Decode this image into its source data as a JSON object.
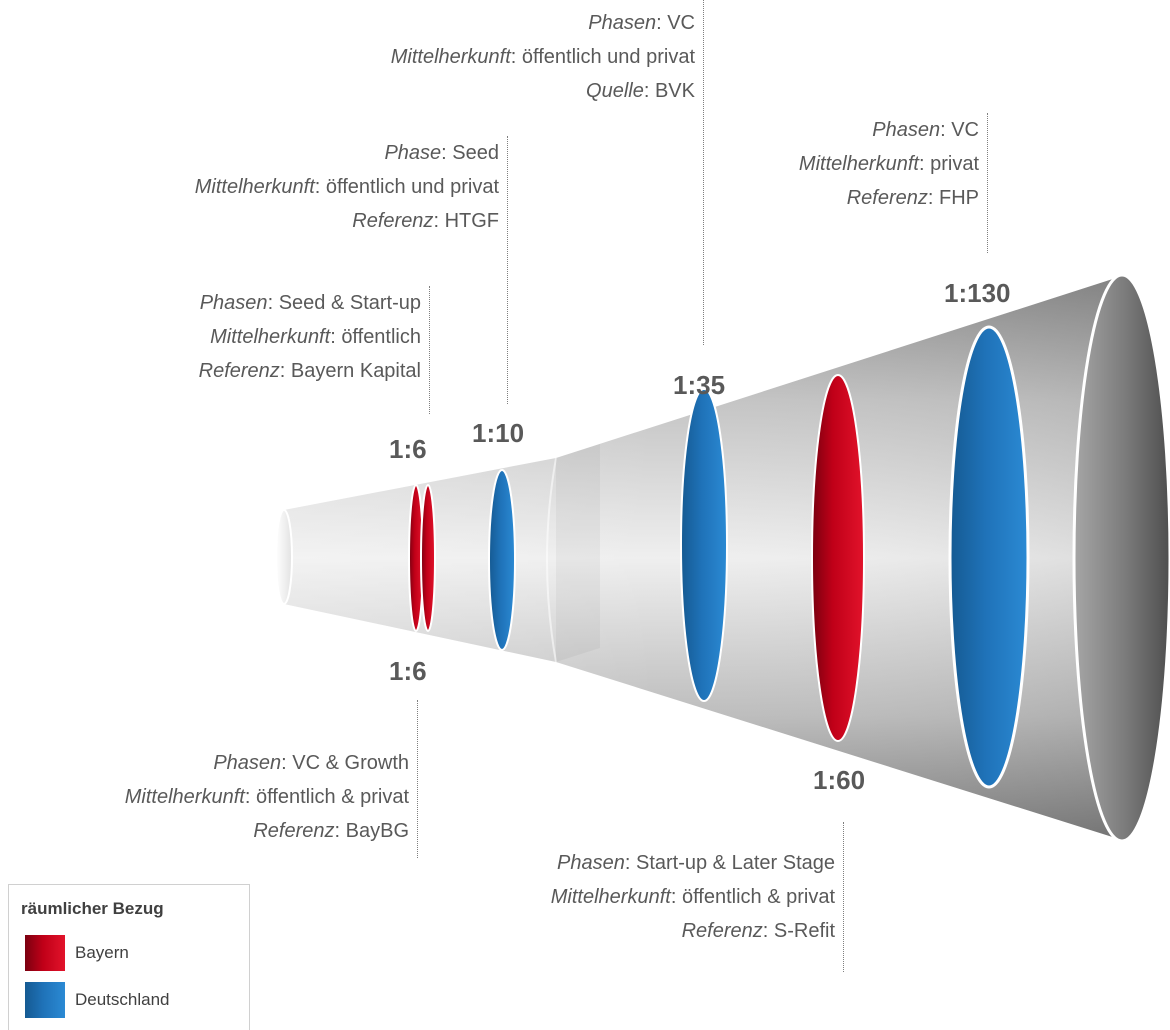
{
  "annotations": [
    {
      "id": "bayern-kapital",
      "lines": [
        {
          "key": "Phasen",
          "value": "Seed & Start-up"
        },
        {
          "key": "Mittelherkunft",
          "value": "öffentlich"
        },
        {
          "key": "Referenz",
          "value": "Bayern Kapital"
        }
      ]
    },
    {
      "id": "htgf",
      "lines": [
        {
          "key": "Phase",
          "value": "Seed"
        },
        {
          "key": "Mittelherkunft",
          "value": "öffentlich und privat"
        },
        {
          "key": "Referenz",
          "value": "HTGF"
        }
      ]
    },
    {
      "id": "bvk",
      "lines": [
        {
          "key": "Phasen",
          "value": "VC"
        },
        {
          "key": "Mittelherkunft",
          "value": "öffentlich und privat"
        },
        {
          "key": "Quelle",
          "value": "BVK"
        }
      ]
    },
    {
      "id": "fhp",
      "lines": [
        {
          "key": "Phasen",
          "value": "VC"
        },
        {
          "key": "Mittelherkunft",
          "value": "privat"
        },
        {
          "key": "Referenz",
          "value": "FHP"
        }
      ]
    },
    {
      "id": "baybg",
      "lines": [
        {
          "key": "Phasen",
          "value": "VC & Growth"
        },
        {
          "key": "Mittelherkunft",
          "value": "öffentlich & privat"
        },
        {
          "key": "Referenz",
          "value": "BayBG"
        }
      ]
    },
    {
      "id": "s-refit",
      "lines": [
        {
          "key": "Phasen",
          "value": "Start-up & Later Stage"
        },
        {
          "key": "Mittelherkunft",
          "value": "öffentlich & privat"
        },
        {
          "key": "Referenz",
          "value": "S-Refit"
        }
      ]
    }
  ],
  "ratios": {
    "bayern_kapital": "1:6",
    "baybg": "1:6",
    "htgf": "1:10",
    "bvk": "1:35",
    "s_refit": "1:60",
    "fhp": "1:130"
  },
  "legend": {
    "title": "räumlicher Bezug",
    "items": [
      {
        "label": "Bayern",
        "color": "#c00018"
      },
      {
        "label": "Deutschland",
        "color": "#1f72b8"
      }
    ]
  },
  "colors": {
    "bayern": "#c00018",
    "deutschland": "#1f72b8",
    "funnel": "#a6a6a6"
  }
}
